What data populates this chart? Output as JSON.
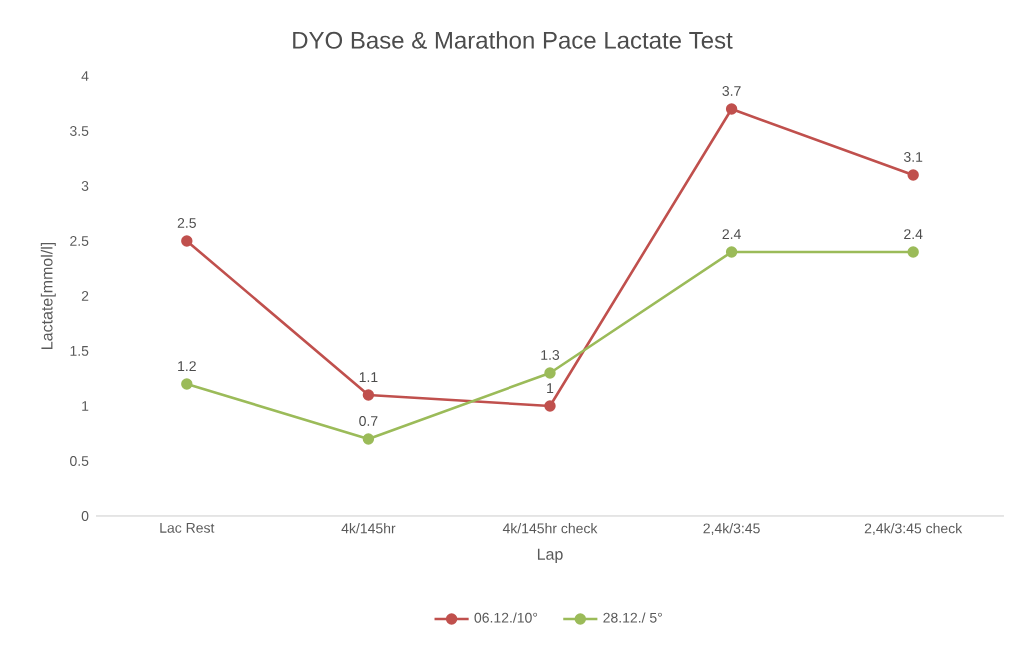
{
  "chart_data": {
    "type": "line",
    "title": "DYO Base & Marathon Pace Lactate Test",
    "xlabel": "Lap",
    "ylabel": "Lactate[mmol/l]",
    "categories": [
      "Lac Rest",
      "4k/145hr",
      "4k/145hr check",
      "2,4k/3:45",
      "2,4k/3:45 check"
    ],
    "series": [
      {
        "name": "06.12./10°",
        "color": "#c0504d",
        "values": [
          2.5,
          1.1,
          1,
          3.7,
          3.1
        ]
      },
      {
        "name": "28.12./ 5°",
        "color": "#9bbb59",
        "values": [
          1.2,
          0.7,
          1.3,
          2.4,
          2.4
        ]
      }
    ],
    "ylim": [
      0,
      4
    ],
    "yticks": [
      0,
      0.5,
      1,
      1.5,
      2,
      2.5,
      3,
      3.5,
      4
    ],
    "data_labels": true,
    "legend": "bottom",
    "marker": "circle",
    "line_style": "solid",
    "grid": false
  }
}
